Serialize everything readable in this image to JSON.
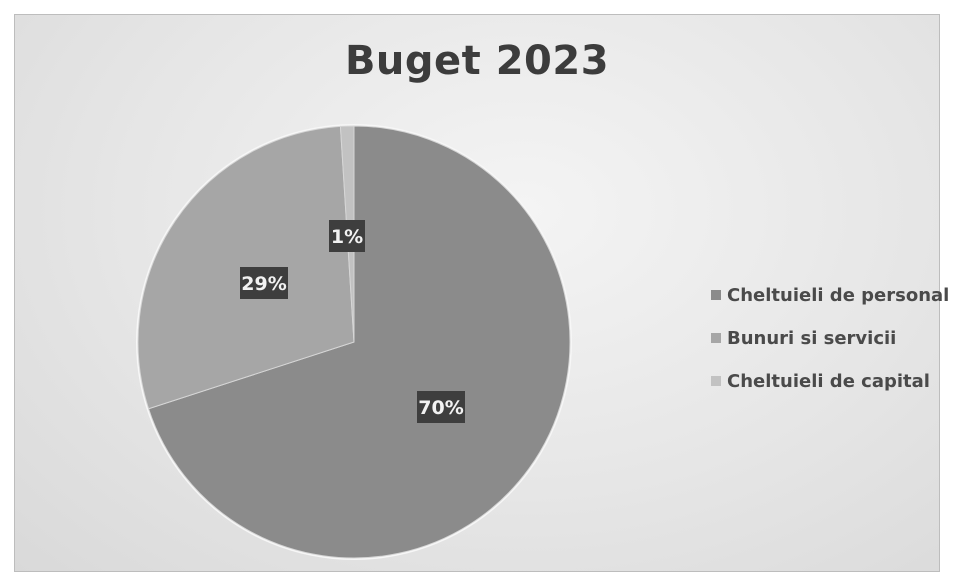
{
  "chart_data": {
    "type": "pie",
    "title": "Buget 2023",
    "categories": [
      "Cheltuieli de personal",
      "Bunuri si servicii",
      "Cheltuieli de capital"
    ],
    "values": [
      70,
      29,
      1
    ],
    "data_labels": [
      "70%",
      "29%",
      "1%"
    ],
    "colors": [
      "#8b8b8b",
      "#a6a6a6",
      "#c2c2c2"
    ],
    "legend_position": "right"
  }
}
